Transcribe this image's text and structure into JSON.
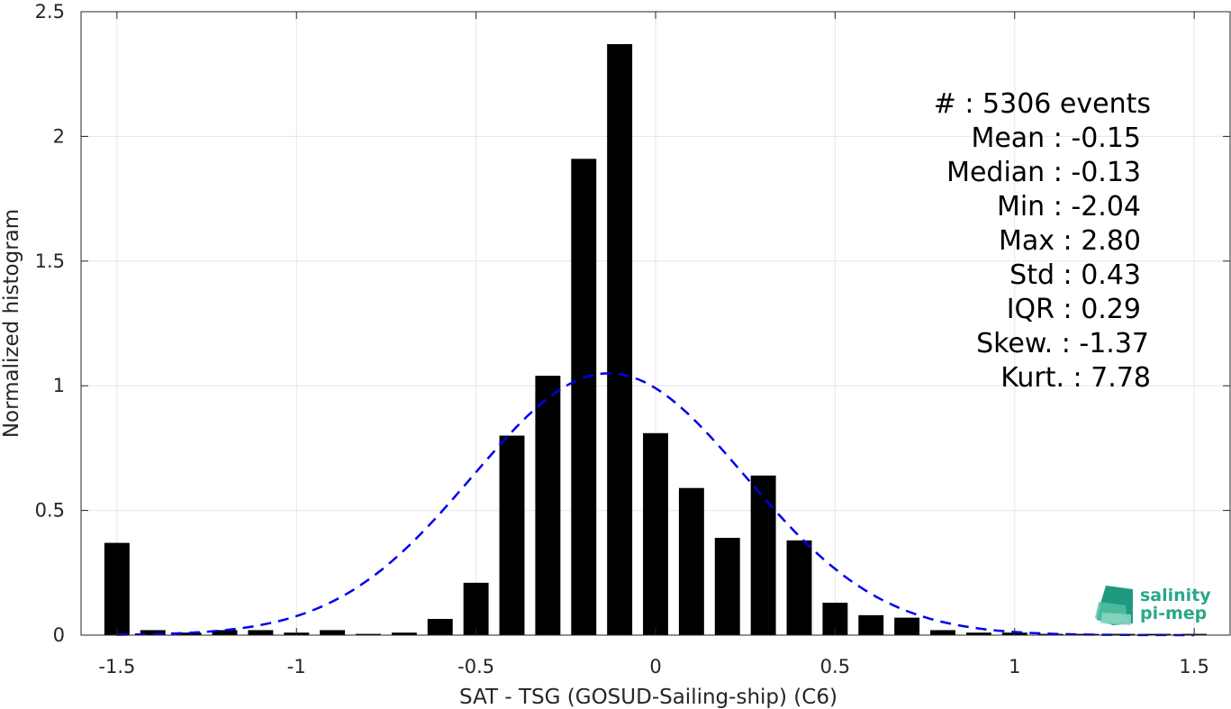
{
  "chart_data": {
    "type": "bar",
    "xlabel": "SAT - TSG (GOSUD-Sailing-ship) (C6)",
    "ylabel": "Normalized histogram",
    "xlim": [
      -1.6,
      1.6
    ],
    "ylim": [
      0,
      2.5
    ],
    "x_ticks": [
      -1.5,
      -1,
      -0.5,
      0,
      0.5,
      1,
      1.5
    ],
    "x_tick_labels": [
      "-1.5",
      "-1",
      "-0.5",
      "0",
      "0.5",
      "1",
      "1.5"
    ],
    "y_ticks": [
      0,
      0.5,
      1,
      1.5,
      2,
      2.5
    ],
    "y_tick_labels": [
      "0",
      "0.5",
      "1",
      "1.5",
      "2",
      "2.5"
    ],
    "grid": true,
    "bar_width": 0.07,
    "bar_color": "#000000",
    "bars": {
      "x": [
        -1.5,
        -1.4,
        -1.3,
        -1.2,
        -1.1,
        -1.0,
        -0.9,
        -0.8,
        -0.7,
        -0.6,
        -0.5,
        -0.4,
        -0.3,
        -0.2,
        -0.1,
        0.0,
        0.1,
        0.2,
        0.3,
        0.4,
        0.5,
        0.6,
        0.7,
        0.8,
        0.9,
        1.0,
        1.1,
        1.2,
        1.3,
        1.4,
        1.5
      ],
      "values": [
        0.37,
        0.02,
        0.01,
        0.02,
        0.02,
        0.01,
        0.02,
        0.005,
        0.01,
        0.065,
        0.21,
        0.8,
        1.04,
        1.91,
        2.37,
        0.81,
        0.59,
        0.39,
        0.64,
        0.38,
        0.13,
        0.08,
        0.07,
        0.02,
        0.01,
        0.01,
        0.005,
        0.005,
        0.005,
        0.005,
        0.005
      ]
    },
    "fit": {
      "style": "dashed",
      "color": "#0000ee",
      "mean": -0.13,
      "std": 0.38,
      "x_range": [
        -1.5,
        1.5
      ]
    },
    "annotations": [
      "#  : 5306 events",
      "Mean : -0.15",
      "Median : -0.13",
      "Min : -2.04",
      "Max : 2.80",
      "Std : 0.43",
      "IQR : 0.29",
      "Skew. : -1.37",
      "Kurt. : 7.78"
    ]
  },
  "logo": {
    "line1": "salinity",
    "line2": "pi-mep",
    "color": "#2aa889"
  }
}
